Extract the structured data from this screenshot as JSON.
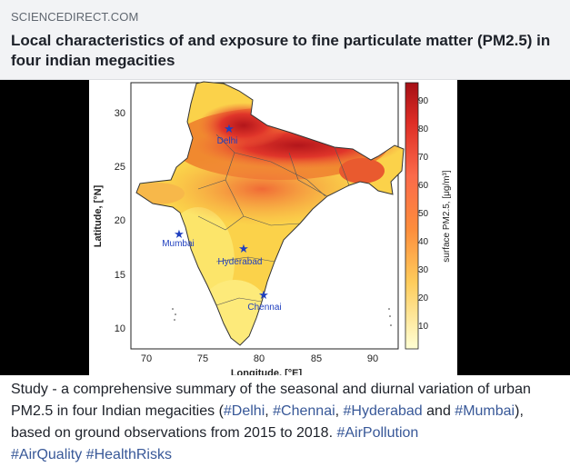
{
  "link_card": {
    "source": "SCIENCEDIRECT.COM",
    "title": "Local characteristics of and exposure to fine particulate matter (PM2.5) in four indian megacities"
  },
  "figure": {
    "y_axis_label": "Latitude, [°N]",
    "x_axis_label": "Longitude, [°E]",
    "x_ticks": [
      "70",
      "75",
      "80",
      "85",
      "90"
    ],
    "y_ticks": [
      "30",
      "25",
      "20",
      "15",
      "10"
    ],
    "colorbar_label": "surface PM2.5, [μg/m³]",
    "colorbar_ticks": [
      "90",
      "80",
      "70",
      "60",
      "50",
      "40",
      "30",
      "20",
      "10"
    ],
    "cities": [
      {
        "name": "Delhi",
        "lon": 77.2,
        "lat": 28.6
      },
      {
        "name": "Mumbai",
        "lon": 72.9,
        "lat": 19.1
      },
      {
        "name": "Hyderabad",
        "lon": 78.5,
        "lat": 17.4
      },
      {
        "name": "Chennai",
        "lon": 80.3,
        "lat": 13.1
      }
    ]
  },
  "post": {
    "text_1": "Study - a comprehensive summary of the seasonal and diurnal variation of urban PM2.5 in four Indian megacities (",
    "tag_delhi": "#Delhi",
    "sep_1": ", ",
    "tag_chennai": "#Chennai",
    "sep_2": ", ",
    "tag_hyderabad": "#Hyderabad",
    "and_text": " and ",
    "tag_mumbai": "#Mumbai",
    "text_2": "), based on ground observations from 2015 to 2018. ",
    "tag_airpollution": "#AirPollution",
    "tag_airquality": "#AirQuality",
    "tag_healthrisks": "#HealthRisks"
  },
  "colors": {
    "link": "#385898",
    "city_marker": "#1f3fbf",
    "pm_high": "#c8161d",
    "pm_low": "#ffffc8"
  }
}
